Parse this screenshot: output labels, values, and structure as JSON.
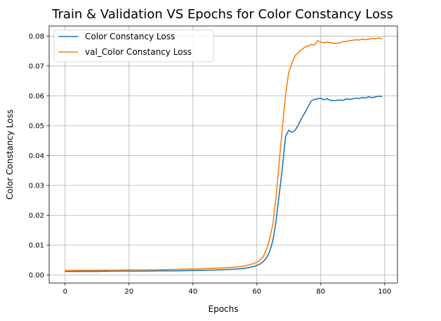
{
  "chart_data": {
    "type": "line",
    "title": "Train & Validation VS Epochs for Color Constancy Loss",
    "xlabel": "Epochs",
    "ylabel": "Color Constancy Loss",
    "xlim": [
      -5,
      104
    ],
    "ylim": [
      -0.0027,
      0.0834
    ],
    "xticks": [
      0,
      20,
      40,
      60,
      80,
      100
    ],
    "yticks": [
      0.0,
      0.01,
      0.02,
      0.03,
      0.04,
      0.05,
      0.06,
      0.07,
      0.08
    ],
    "ytick_labels": [
      "0.00",
      "0.01",
      "0.02",
      "0.03",
      "0.04",
      "0.05",
      "0.06",
      "0.07",
      "0.08"
    ],
    "grid": true,
    "legend_position": "upper-left",
    "series": [
      {
        "name": "Color Constancy Loss",
        "color": "#1f77b4",
        "x": [
          0,
          5,
          10,
          15,
          20,
          25,
          30,
          35,
          40,
          45,
          50,
          54,
          56,
          58,
          60,
          61,
          62,
          63,
          64,
          65,
          66,
          67,
          68,
          69,
          70,
          71,
          72,
          73,
          74,
          75,
          76,
          77,
          78,
          79,
          80,
          81,
          82,
          83,
          84,
          85,
          86,
          87,
          88,
          89,
          90,
          91,
          92,
          93,
          94,
          95,
          96,
          97,
          98,
          99
        ],
        "y": [
          0.0012,
          0.0012,
          0.0012,
          0.0013,
          0.0013,
          0.0013,
          0.0014,
          0.0014,
          0.0015,
          0.0016,
          0.0018,
          0.002,
          0.0022,
          0.0026,
          0.0032,
          0.0037,
          0.0045,
          0.0057,
          0.0078,
          0.0115,
          0.018,
          0.027,
          0.036,
          0.0465,
          0.0485,
          0.0478,
          0.0485,
          0.0503,
          0.0525,
          0.0543,
          0.0563,
          0.0583,
          0.0588,
          0.059,
          0.0592,
          0.0587,
          0.059,
          0.0585,
          0.0584,
          0.0585,
          0.0586,
          0.0585,
          0.059,
          0.0588,
          0.059,
          0.0592,
          0.0591,
          0.0594,
          0.0593,
          0.0597,
          0.0594,
          0.0596,
          0.0599,
          0.0598
        ]
      },
      {
        "name": "val_Color Constancy Loss",
        "color": "#ff7f0e",
        "x": [
          0,
          5,
          10,
          15,
          20,
          25,
          30,
          35,
          40,
          45,
          50,
          54,
          56,
          58,
          60,
          61,
          62,
          63,
          64,
          65,
          66,
          67,
          68,
          69,
          70,
          71,
          72,
          73,
          74,
          75,
          76,
          77,
          78,
          79,
          80,
          81,
          82,
          83,
          84,
          85,
          86,
          87,
          88,
          89,
          90,
          91,
          92,
          93,
          94,
          95,
          96,
          97,
          98,
          99
        ],
        "y": [
          0.0015,
          0.0016,
          0.0016,
          0.0016,
          0.0017,
          0.0017,
          0.0018,
          0.0019,
          0.002,
          0.0022,
          0.0024,
          0.0027,
          0.003,
          0.0035,
          0.0042,
          0.005,
          0.0062,
          0.0085,
          0.012,
          0.017,
          0.026,
          0.038,
          0.0495,
          0.0605,
          0.068,
          0.071,
          0.0735,
          0.0745,
          0.0755,
          0.0763,
          0.0767,
          0.0772,
          0.077,
          0.0785,
          0.078,
          0.0778,
          0.078,
          0.0778,
          0.0776,
          0.0776,
          0.0778,
          0.0782,
          0.0782,
          0.0785,
          0.0786,
          0.0788,
          0.0787,
          0.079,
          0.0788,
          0.079,
          0.0792,
          0.0791,
          0.0794,
          0.0792
        ]
      }
    ]
  }
}
